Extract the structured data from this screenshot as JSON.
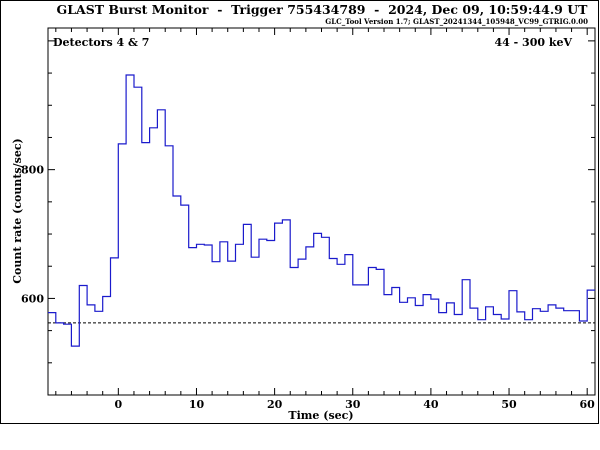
{
  "chart_data": {
    "type": "line",
    "style": "step",
    "title": "GLAST Burst Monitor  -  Trigger 755434789  -  2024, Dec 09, 10:59:44.9 UT",
    "subtitle": "GLC_Tool Version 1.7; GLAST_20241344_105948_VC99_GTRIG.0.00",
    "annotation_left": "Detectors 4 & 7",
    "annotation_right": "44 - 300 keV",
    "xlabel": "Time (sec)",
    "ylabel": "Count rate (counts/sec)",
    "xlim": [
      -9,
      61
    ],
    "ylim": [
      450,
      1020
    ],
    "x_ticks": [
      0,
      10,
      20,
      30,
      40,
      50,
      60
    ],
    "y_ticks": [
      600,
      800
    ],
    "line_color": "#1a1acc",
    "background_level": 562,
    "background_style": "dashed",
    "series": [
      {
        "x": [
          -9,
          -8,
          -7,
          -6,
          -5,
          -4,
          -3,
          -2,
          -1,
          0,
          1,
          2,
          3,
          4,
          5,
          6,
          7,
          8,
          9,
          10,
          11,
          12,
          13,
          14,
          15,
          16,
          17,
          18,
          19,
          20,
          21,
          22,
          23,
          24,
          25,
          26,
          27,
          28,
          29,
          30,
          31,
          32,
          33,
          34,
          35,
          36,
          37,
          38,
          39,
          40,
          41,
          42,
          43,
          44,
          45,
          46,
          47,
          48,
          49,
          50,
          51,
          52,
          53,
          54,
          55,
          56,
          57,
          58,
          59,
          60,
          61
        ],
        "y": [
          578,
          562,
          560,
          526,
          620,
          590,
          580,
          603,
          663,
          840,
          947,
          928,
          842,
          865,
          893,
          837,
          759,
          745,
          679,
          684,
          683,
          657,
          688,
          658,
          684,
          715,
          664,
          692,
          690,
          717,
          722,
          648,
          661,
          680,
          701,
          695,
          662,
          653,
          668,
          621,
          621,
          648,
          645,
          606,
          617,
          594,
          601,
          589,
          606,
          599,
          578,
          593,
          575,
          629,
          585,
          567,
          587,
          575,
          568,
          612,
          579,
          567,
          584,
          580,
          590,
          585,
          581,
          581,
          565,
          613,
          613
        ]
      }
    ]
  }
}
